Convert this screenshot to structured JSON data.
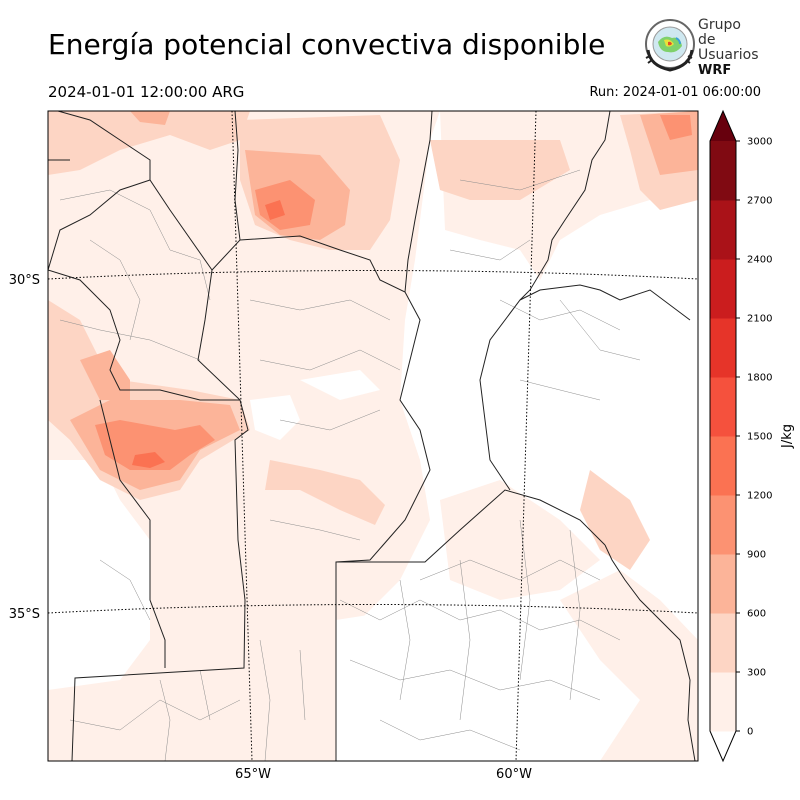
{
  "title": "Energía potencial convectiva disponible",
  "valid_time": "2024-01-01 12:00:00 ARG",
  "run_time": "Run: 2024-01-01 06:00:00",
  "logo": {
    "line1": "Grupo de",
    "line2": "Usuarios",
    "line3": "WRF"
  },
  "map": {
    "lat_labels": [
      "30°S",
      "35°S"
    ],
    "lon_labels": [
      "65°W",
      "60°W"
    ]
  },
  "colorbar": {
    "unit": "J/kg",
    "ticks": [
      "0",
      "300",
      "600",
      "900",
      "1200",
      "1500",
      "1800",
      "2100",
      "2400",
      "2700",
      "3000"
    ],
    "colors": [
      "#fff0e9",
      "#fdd5c4",
      "#fcb499",
      "#fc9272",
      "#fb7252",
      "#f5513d",
      "#e63429",
      "#cb1d1e",
      "#aa1218",
      "#800a12"
    ],
    "over_color": "#67000d"
  }
}
